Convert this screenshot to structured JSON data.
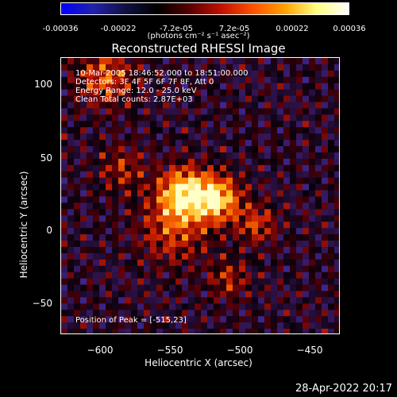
{
  "colorbar": {
    "ticks": [
      "-0.00036",
      "-0.00022",
      "-7.2e-05",
      "7.2e-05",
      "0.00022",
      "0.00036"
    ],
    "units": "(photons cm⁻² s⁻¹ asec⁻²)",
    "colors": [
      "#0000ff",
      "#2222aa",
      "#111144",
      "#000000",
      "#550000",
      "#c01000",
      "#ff5000",
      "#ffa000",
      "#ffff80",
      "#ffffff"
    ]
  },
  "plot": {
    "title": "Reconstructed RHESSI Image",
    "info": [
      "10-Mar-2005 18:46:52.000 to 18:51:00.000",
      "Detectors: 3F 4F 5F 6F 7F 8F, Att 0",
      "Energy Range: 12.0 - 25.0 keV",
      "Clean    Total counts: 2.87E+03"
    ],
    "peak": "Position of Peak = [-515,23]",
    "xlabel": "Heliocentric X (arcsec)",
    "ylabel": "Heliocentric Y (arcsec)",
    "xticks": [
      "−600",
      "−550",
      "−500",
      "−450"
    ],
    "yticks": [
      "100",
      "50",
      "0",
      "−50"
    ]
  },
  "timestamp": "28-Apr-2022 20:17"
}
